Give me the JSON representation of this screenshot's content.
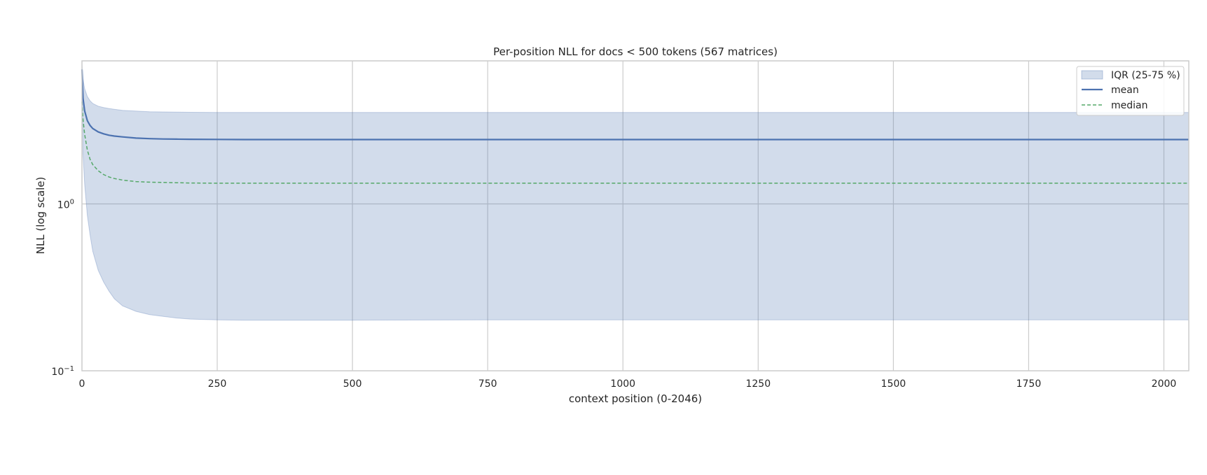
{
  "chart_data": {
    "type": "area",
    "title": "Per-position NLL for docs < 500 tokens (567 matrices)",
    "xlabel": "context position (0-2046)",
    "ylabel": "NLL (log scale)",
    "xlim": [
      0,
      2046
    ],
    "ylim": [
      0.1,
      7.2
    ],
    "yscale": "log",
    "grid": true,
    "legend_position": "top-right",
    "x_ticks": [
      0,
      250,
      500,
      750,
      1000,
      1250,
      1500,
      1750,
      2000
    ],
    "x_tick_labels": [
      "0",
      "250",
      "500",
      "750",
      "1000",
      "1250",
      "1500",
      "1750",
      "2000"
    ],
    "y_ticks": [
      0.1,
      1
    ],
    "y_tick_labels": [
      {
        "base": "10",
        "exp": "−1"
      },
      {
        "base": "10",
        "exp": "0"
      }
    ],
    "x": [
      0,
      2,
      5,
      10,
      15,
      20,
      30,
      40,
      50,
      60,
      75,
      100,
      125,
      150,
      175,
      200,
      250,
      300,
      400,
      500,
      750,
      1000,
      1250,
      1500,
      1750,
      2046
    ],
    "series": [
      {
        "name": "IQR (25-75 %)",
        "kind": "band",
        "color": "#4c72b0",
        "low": [
          6.9,
          2.0,
          1.3,
          0.85,
          0.65,
          0.52,
          0.4,
          0.34,
          0.3,
          0.27,
          0.245,
          0.227,
          0.217,
          0.212,
          0.207,
          0.204,
          0.202,
          0.201,
          0.201,
          0.201,
          0.202,
          0.202,
          0.202,
          0.202,
          0.202,
          0.202
        ],
        "high": [
          6.9,
          5.6,
          4.9,
          4.4,
          4.15,
          4.0,
          3.85,
          3.78,
          3.73,
          3.69,
          3.64,
          3.6,
          3.57,
          3.56,
          3.55,
          3.54,
          3.53,
          3.53,
          3.53,
          3.53,
          3.53,
          3.53,
          3.53,
          3.53,
          3.53,
          3.53
        ]
      },
      {
        "name": "mean",
        "kind": "line",
        "color": "#4c72b0",
        "values": [
          6.4,
          4.3,
          3.6,
          3.15,
          2.95,
          2.83,
          2.7,
          2.63,
          2.58,
          2.55,
          2.52,
          2.48,
          2.46,
          2.45,
          2.445,
          2.44,
          2.435,
          2.43,
          2.43,
          2.43,
          2.43,
          2.43,
          2.43,
          2.43,
          2.43,
          2.43
        ]
      },
      {
        "name": "median",
        "kind": "line",
        "dash": true,
        "color": "#55a868",
        "values": [
          4.1,
          3.2,
          2.6,
          2.1,
          1.85,
          1.72,
          1.58,
          1.5,
          1.45,
          1.42,
          1.39,
          1.36,
          1.35,
          1.345,
          1.34,
          1.335,
          1.33,
          1.33,
          1.33,
          1.33,
          1.33,
          1.33,
          1.33,
          1.33,
          1.33,
          1.33
        ]
      }
    ]
  }
}
